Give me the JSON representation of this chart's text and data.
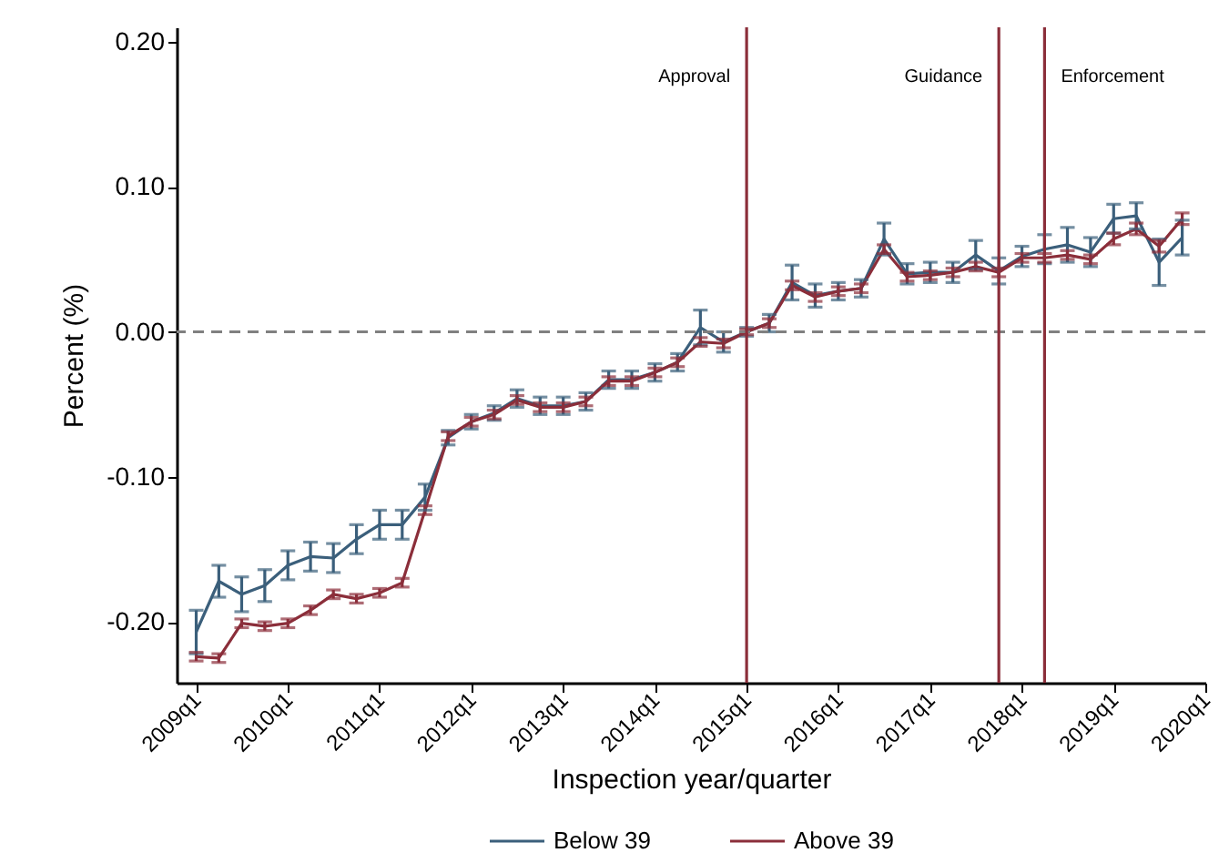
{
  "chart_data": {
    "type": "line",
    "xlabel": "Inspection year/quarter",
    "ylabel": "Percent (%)",
    "x": [
      "2009-01",
      "2009-04",
      "2009-07",
      "2009-10",
      "2010-01",
      "2010-04",
      "2010-07",
      "2010-10",
      "2011-01",
      "2011-04",
      "2011-07",
      "2011-10",
      "2012-01",
      "2012-04",
      "2012-07",
      "2012-10",
      "2013-01",
      "2013-04",
      "2013-07",
      "2013-10",
      "2014-01",
      "2014-04",
      "2014-07",
      "2014-10",
      "2015-01",
      "2015-04",
      "2015-07",
      "2015-10",
      "2016-01",
      "2016-04",
      "2016-07",
      "2016-10",
      "2017-01",
      "2017-04",
      "2017-07",
      "2017-10",
      "2018-01",
      "2018-04",
      "2018-07",
      "2018-10",
      "2019-01",
      "2019-04",
      "2019-07",
      "2019-10"
    ],
    "series": [
      {
        "name": "Below 39",
        "color": "#3b5f7b",
        "values": [
          -0.207,
          -0.172,
          -0.181,
          -0.175,
          -0.161,
          -0.155,
          -0.156,
          -0.143,
          -0.133,
          -0.133,
          -0.114,
          -0.073,
          -0.062,
          -0.056,
          -0.046,
          -0.051,
          -0.051,
          -0.048,
          -0.033,
          -0.033,
          -0.028,
          -0.021,
          0.003,
          -0.007,
          0.0,
          0.006,
          0.034,
          0.025,
          0.028,
          0.03,
          0.064,
          0.04,
          0.041,
          0.041,
          0.053,
          0.042,
          0.052,
          0.057,
          0.06,
          0.055,
          0.078,
          0.08,
          0.048,
          0.065
        ],
        "errors": [
          0.015,
          0.011,
          0.012,
          0.011,
          0.01,
          0.01,
          0.01,
          0.01,
          0.01,
          0.01,
          0.009,
          0.005,
          0.005,
          0.005,
          0.006,
          0.006,
          0.006,
          0.006,
          0.006,
          0.006,
          0.006,
          0.006,
          0.012,
          0.007,
          0.003,
          0.006,
          0.012,
          0.008,
          0.006,
          0.006,
          0.011,
          0.007,
          0.007,
          0.007,
          0.01,
          0.009,
          0.007,
          0.01,
          0.012,
          0.01,
          0.01,
          0.009,
          0.016,
          0.012
        ]
      },
      {
        "name": "Above 39",
        "color": "#8b2e3a",
        "values": [
          -0.224,
          -0.225,
          -0.201,
          -0.203,
          -0.201,
          -0.192,
          -0.181,
          -0.184,
          -0.18,
          -0.173,
          -0.123,
          -0.072,
          -0.062,
          -0.057,
          -0.047,
          -0.052,
          -0.052,
          -0.048,
          -0.034,
          -0.034,
          -0.028,
          -0.021,
          -0.007,
          -0.008,
          0.0,
          0.006,
          0.032,
          0.024,
          0.028,
          0.03,
          0.057,
          0.038,
          0.039,
          0.041,
          0.045,
          0.041,
          0.051,
          0.051,
          0.053,
          0.05,
          0.064,
          0.071,
          0.059,
          0.078
        ],
        "errors": [
          0.003,
          0.003,
          0.003,
          0.003,
          0.003,
          0.003,
          0.003,
          0.003,
          0.003,
          0.003,
          0.003,
          0.003,
          0.003,
          0.003,
          0.003,
          0.003,
          0.003,
          0.003,
          0.003,
          0.003,
          0.003,
          0.003,
          0.003,
          0.003,
          0.002,
          0.003,
          0.003,
          0.003,
          0.003,
          0.003,
          0.003,
          0.003,
          0.003,
          0.003,
          0.003,
          0.003,
          0.003,
          0.003,
          0.003,
          0.003,
          0.004,
          0.004,
          0.004,
          0.004
        ]
      }
    ],
    "xlim": [
      "2008-10-15",
      "2020-01"
    ],
    "xticks": [
      {
        "value": "2009-01",
        "label": "2009q1"
      },
      {
        "value": "2010-01",
        "label": "2010q1"
      },
      {
        "value": "2011-01",
        "label": "2011q1"
      },
      {
        "value": "2012-01",
        "label": "2012q1"
      },
      {
        "value": "2013-01",
        "label": "2013q1"
      },
      {
        "value": "2014-01",
        "label": "2014q1"
      },
      {
        "value": "2015-01",
        "label": "2015q1"
      },
      {
        "value": "2016-01",
        "label": "2016q1"
      },
      {
        "value": "2017-01",
        "label": "2017q1"
      },
      {
        "value": "2018-01",
        "label": "2018q1"
      },
      {
        "value": "2019-01",
        "label": "2019q1"
      },
      {
        "value": "2020-01",
        "label": "2020q1"
      }
    ],
    "ylim": [
      -0.242,
      0.21
    ],
    "yticks": [
      {
        "value": -0.2,
        "label": "-0.20"
      },
      {
        "value": -0.1,
        "label": "-0.10"
      },
      {
        "value": 0,
        "label": "0.00"
      },
      {
        "value": 0.1,
        "label": "0.10"
      },
      {
        "value": 0.2,
        "label": "0.20"
      }
    ],
    "ref_lines": [
      {
        "axis": "y",
        "value": 0,
        "color": "#808080",
        "line_style": "dashed"
      },
      {
        "axis": "x",
        "value": "2015-01",
        "label": "Approval",
        "color": "#8b2e3a"
      },
      {
        "axis": "x",
        "value": "2017-10",
        "label": "Guidance",
        "color": "#8b2e3a"
      },
      {
        "axis": "x",
        "value": "2018-04",
        "label": "Enforcement",
        "color": "#8b2e3a"
      }
    ],
    "grid": false,
    "legend": "bottom",
    "marker": "none",
    "line_style": "solid"
  }
}
